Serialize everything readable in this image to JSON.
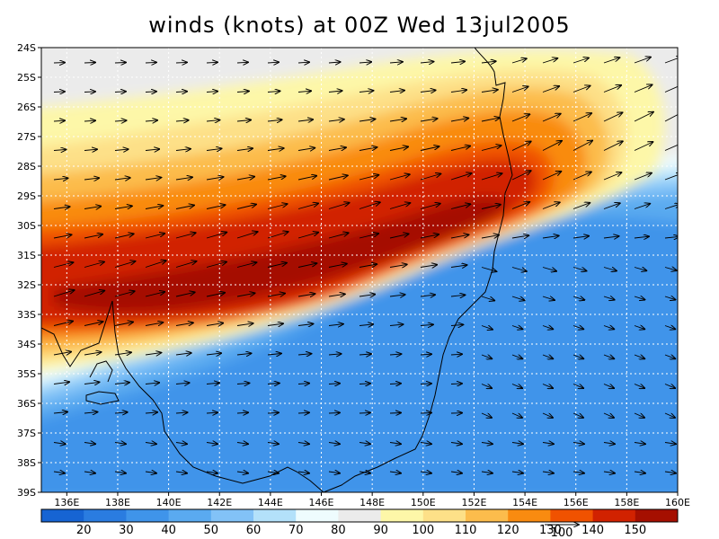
{
  "title": "winds (knots) at 00Z Wed 13jul2005",
  "map": {
    "lat_labels": [
      "24S",
      "25S",
      "26S",
      "27S",
      "28S",
      "29S",
      "30S",
      "31S",
      "32S",
      "33S",
      "34S",
      "35S",
      "36S",
      "37S",
      "38S",
      "39S"
    ],
    "lon_labels": [
      "136E",
      "138E",
      "140E",
      "142E",
      "144E",
      "146E",
      "148E",
      "150E",
      "152E",
      "154E",
      "156E",
      "158E",
      "160E"
    ]
  },
  "colorbar": {
    "labels": [
      "20",
      "30",
      "40",
      "50",
      "60",
      "70",
      "80",
      "90",
      "100",
      "110",
      "120",
      "130",
      "140",
      "150"
    ],
    "colors": [
      "#1664d3",
      "#2a7ce0",
      "#3f94ea",
      "#5aaaf0",
      "#82c2f7",
      "#b3e1fa",
      "#eefcfe",
      "#ebebeb",
      "#fdf7a8",
      "#fde088",
      "#fcbc4c",
      "#f98b10",
      "#f05200",
      "#d12200",
      "#a50f00"
    ]
  },
  "vector_key": {
    "label": "100"
  },
  "colors": {
    "coast": "#000000",
    "grid": "#ffffff",
    "arrow": "#000000"
  }
}
